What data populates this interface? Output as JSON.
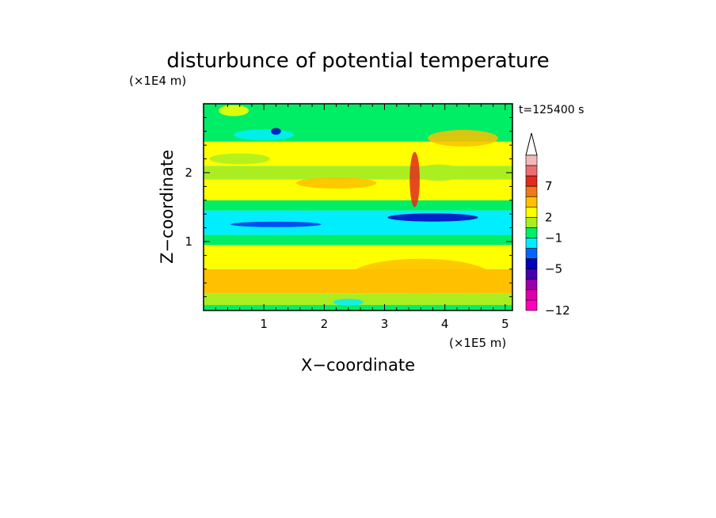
{
  "chart_data": {
    "type": "heatmap",
    "title": "disturbunce of potential temperature",
    "time_label": "t=125400 s",
    "xlabel": "X−coordinate",
    "ylabel": "Z−coordinate",
    "x_scale_label": "(×1E5 m)",
    "y_scale_label": "(×1E4 m)",
    "xlim": [
      0,
      5.12
    ],
    "ylim": [
      0,
      3.0
    ],
    "xticks": [
      "1",
      "2",
      "3",
      "4",
      "5"
    ],
    "yticks": [
      "1",
      "2"
    ],
    "colorbar": {
      "labels": [
        "7",
        "2",
        "−1",
        "−5",
        "−12"
      ],
      "label_values": [
        7,
        2,
        -1,
        -5,
        -12
      ],
      "colors_top_to_bottom": [
        "#f2b8b8",
        "#ee6e6e",
        "#e12b1e",
        "#f07819",
        "#ffc000",
        "#ffff00",
        "#aaee22",
        "#00ee66",
        "#00eeff",
        "#0066ff",
        "#0000bb",
        "#4400aa",
        "#9900aa",
        "#dd00aa",
        "#ff00bb"
      ],
      "extends_top": true
    },
    "bands": [
      {
        "z": [
          0.0,
          0.08
        ],
        "color": "#00ee66"
      },
      {
        "z": [
          0.08,
          0.25
        ],
        "color": "#aaee22"
      },
      {
        "z": [
          0.25,
          0.6
        ],
        "color": "#ffc000"
      },
      {
        "z": [
          0.6,
          0.95
        ],
        "color": "#ffff00"
      },
      {
        "z": [
          0.95,
          1.1
        ],
        "color": "#00ee66"
      },
      {
        "z": [
          1.1,
          1.45
        ],
        "color": "#00eeff"
      },
      {
        "z": [
          1.45,
          1.6
        ],
        "color": "#00ee66"
      },
      {
        "z": [
          1.6,
          1.9
        ],
        "color": "#ffff00"
      },
      {
        "z": [
          1.9,
          2.1
        ],
        "color": "#aaee22"
      },
      {
        "z": [
          2.1,
          2.45
        ],
        "color": "#ffff00"
      },
      {
        "z": [
          2.45,
          3.0
        ],
        "color": "#00ee66"
      }
    ]
  }
}
